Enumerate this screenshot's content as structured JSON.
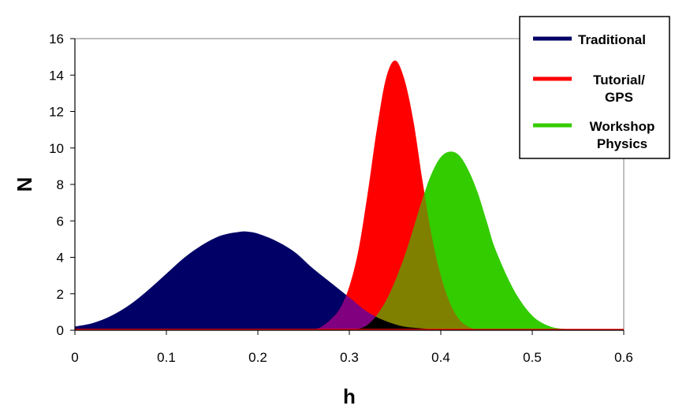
{
  "chart_data": {
    "type": "area",
    "xlabel": "h",
    "ylabel": "N",
    "xlim": [
      0,
      0.6
    ],
    "ylim": [
      0,
      16
    ],
    "x_ticks": [
      "0",
      "0.1",
      "0.2",
      "0.3",
      "0.4",
      "0.5",
      "0.6"
    ],
    "y_ticks": [
      "0",
      "2",
      "4",
      "6",
      "8",
      "10",
      "12",
      "14",
      "16"
    ],
    "grid": false,
    "legend_position": "top-right",
    "series": [
      {
        "name": "Traditional",
        "color": "#000066",
        "x": [
          0,
          0.02,
          0.04,
          0.06,
          0.08,
          0.1,
          0.12,
          0.14,
          0.16,
          0.18,
          0.19,
          0.2,
          0.22,
          0.24,
          0.26,
          0.28,
          0.3,
          0.32,
          0.34,
          0.36,
          0.38,
          0.4,
          0.42
        ],
        "y": [
          0.2,
          0.4,
          0.8,
          1.4,
          2.2,
          3.1,
          4.0,
          4.7,
          5.2,
          5.4,
          5.4,
          5.3,
          4.9,
          4.3,
          3.4,
          2.6,
          1.8,
          1.0,
          0.5,
          0.2,
          0.1,
          0.0,
          0.0
        ]
      },
      {
        "name": "Tutorial/ GPS",
        "legend_lines": [
          "Tutorial/",
          "GPS"
        ],
        "color": "#ff0000",
        "x": [
          0.26,
          0.27,
          0.28,
          0.29,
          0.3,
          0.31,
          0.32,
          0.33,
          0.34,
          0.35,
          0.36,
          0.37,
          0.38,
          0.39,
          0.4,
          0.41,
          0.42,
          0.43,
          0.44
        ],
        "y": [
          0.0,
          0.2,
          0.6,
          1.2,
          2.4,
          4.4,
          7.5,
          11.0,
          13.8,
          14.8,
          13.8,
          11.5,
          8.2,
          5.2,
          3.0,
          1.5,
          0.6,
          0.2,
          0.0
        ]
      },
      {
        "name": "Workshop Physics",
        "legend_lines": [
          "Workshop",
          "Physics"
        ],
        "color": "#33cc00",
        "x": [
          0.3,
          0.32,
          0.34,
          0.36,
          0.38,
          0.39,
          0.4,
          0.41,
          0.42,
          0.43,
          0.44,
          0.45,
          0.46,
          0.48,
          0.5,
          0.52,
          0.54,
          0.55
        ],
        "y": [
          0.0,
          0.3,
          1.6,
          4.0,
          7.2,
          8.6,
          9.5,
          9.8,
          9.6,
          8.8,
          7.6,
          6.0,
          4.4,
          2.2,
          0.8,
          0.2,
          0.05,
          0.0
        ]
      }
    ]
  }
}
